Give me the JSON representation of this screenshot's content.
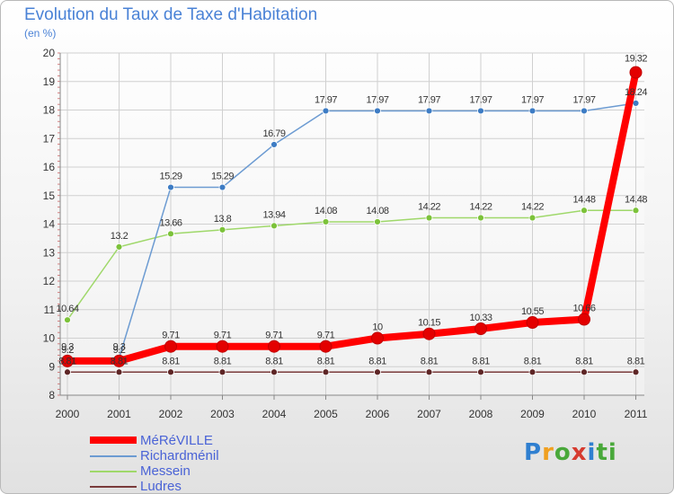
{
  "header": {
    "title": "Evolution du Taux de Taxe d'Habitation",
    "subtitle": "(en %)"
  },
  "logo": {
    "text": "Proxiti",
    "letters": [
      "P",
      "r",
      "o",
      "x",
      "i",
      "ti"
    ]
  },
  "chart_data": {
    "type": "line",
    "title": "Evolution du Taux de Taxe d'Habitation",
    "subtitle": "(en %)",
    "xlabel": "",
    "ylabel": "",
    "ylim": [
      8,
      20
    ],
    "yticks": [
      "8",
      "9",
      "10",
      "11",
      "12",
      "13",
      "14",
      "15",
      "16",
      "17",
      "18",
      "19",
      "20"
    ],
    "x": [
      "2000",
      "2001",
      "2002",
      "2003",
      "2004",
      "2005",
      "2006",
      "2007",
      "2008",
      "2009",
      "2010",
      "2011"
    ],
    "grid": true,
    "legend_position": "bottom-left",
    "series": [
      {
        "name": "MéRéVILLE",
        "color": "#ff0000",
        "marker_color": "#e30000",
        "values": [
          9.2,
          9.2,
          9.71,
          9.71,
          9.71,
          9.71,
          10,
          10.15,
          10.33,
          10.55,
          10.66,
          19.32
        ],
        "labels": [
          "9.2",
          "9.2",
          "9.71",
          "9.71",
          "9.71",
          "9.71",
          "10",
          "10.15",
          "10.33",
          "10.55",
          "10.66",
          "19.32"
        ]
      },
      {
        "name": "Richardménil",
        "color": "#6c9bd2",
        "marker_color": "#3d7cc4",
        "values": [
          9.3,
          9.3,
          15.29,
          15.29,
          16.79,
          17.97,
          17.97,
          17.97,
          17.97,
          17.97,
          17.97,
          18.24
        ],
        "labels": [
          "9.3",
          "9.3",
          "15.29",
          "15.29",
          "16.79",
          "17.97",
          "17.97",
          "17.97",
          "17.97",
          "17.97",
          "17.97",
          "18.24"
        ]
      },
      {
        "name": "Messein",
        "color": "#9fd86a",
        "marker_color": "#7cc23a",
        "values": [
          10.64,
          13.2,
          13.66,
          13.8,
          13.94,
          14.08,
          14.08,
          14.22,
          14.22,
          14.22,
          14.48,
          14.48
        ],
        "labels": [
          "10.64",
          "13.2",
          "13.66",
          "13.8",
          "13.94",
          "14.08",
          "14.08",
          "14.22",
          "14.22",
          "14.22",
          "14.48",
          "14.48"
        ]
      },
      {
        "name": "Ludres",
        "color": "#7a3b3b",
        "marker_color": "#5e2626",
        "values": [
          8.81,
          8.81,
          8.81,
          8.81,
          8.81,
          8.81,
          8.81,
          8.81,
          8.81,
          8.81,
          8.81,
          8.81
        ],
        "labels": [
          "8.81",
          "8.81",
          "8.81",
          "8.81",
          "8.81",
          "8.81",
          "8.81",
          "8.81",
          "8.81",
          "8.81",
          "8.81",
          "8.81"
        ]
      }
    ]
  }
}
